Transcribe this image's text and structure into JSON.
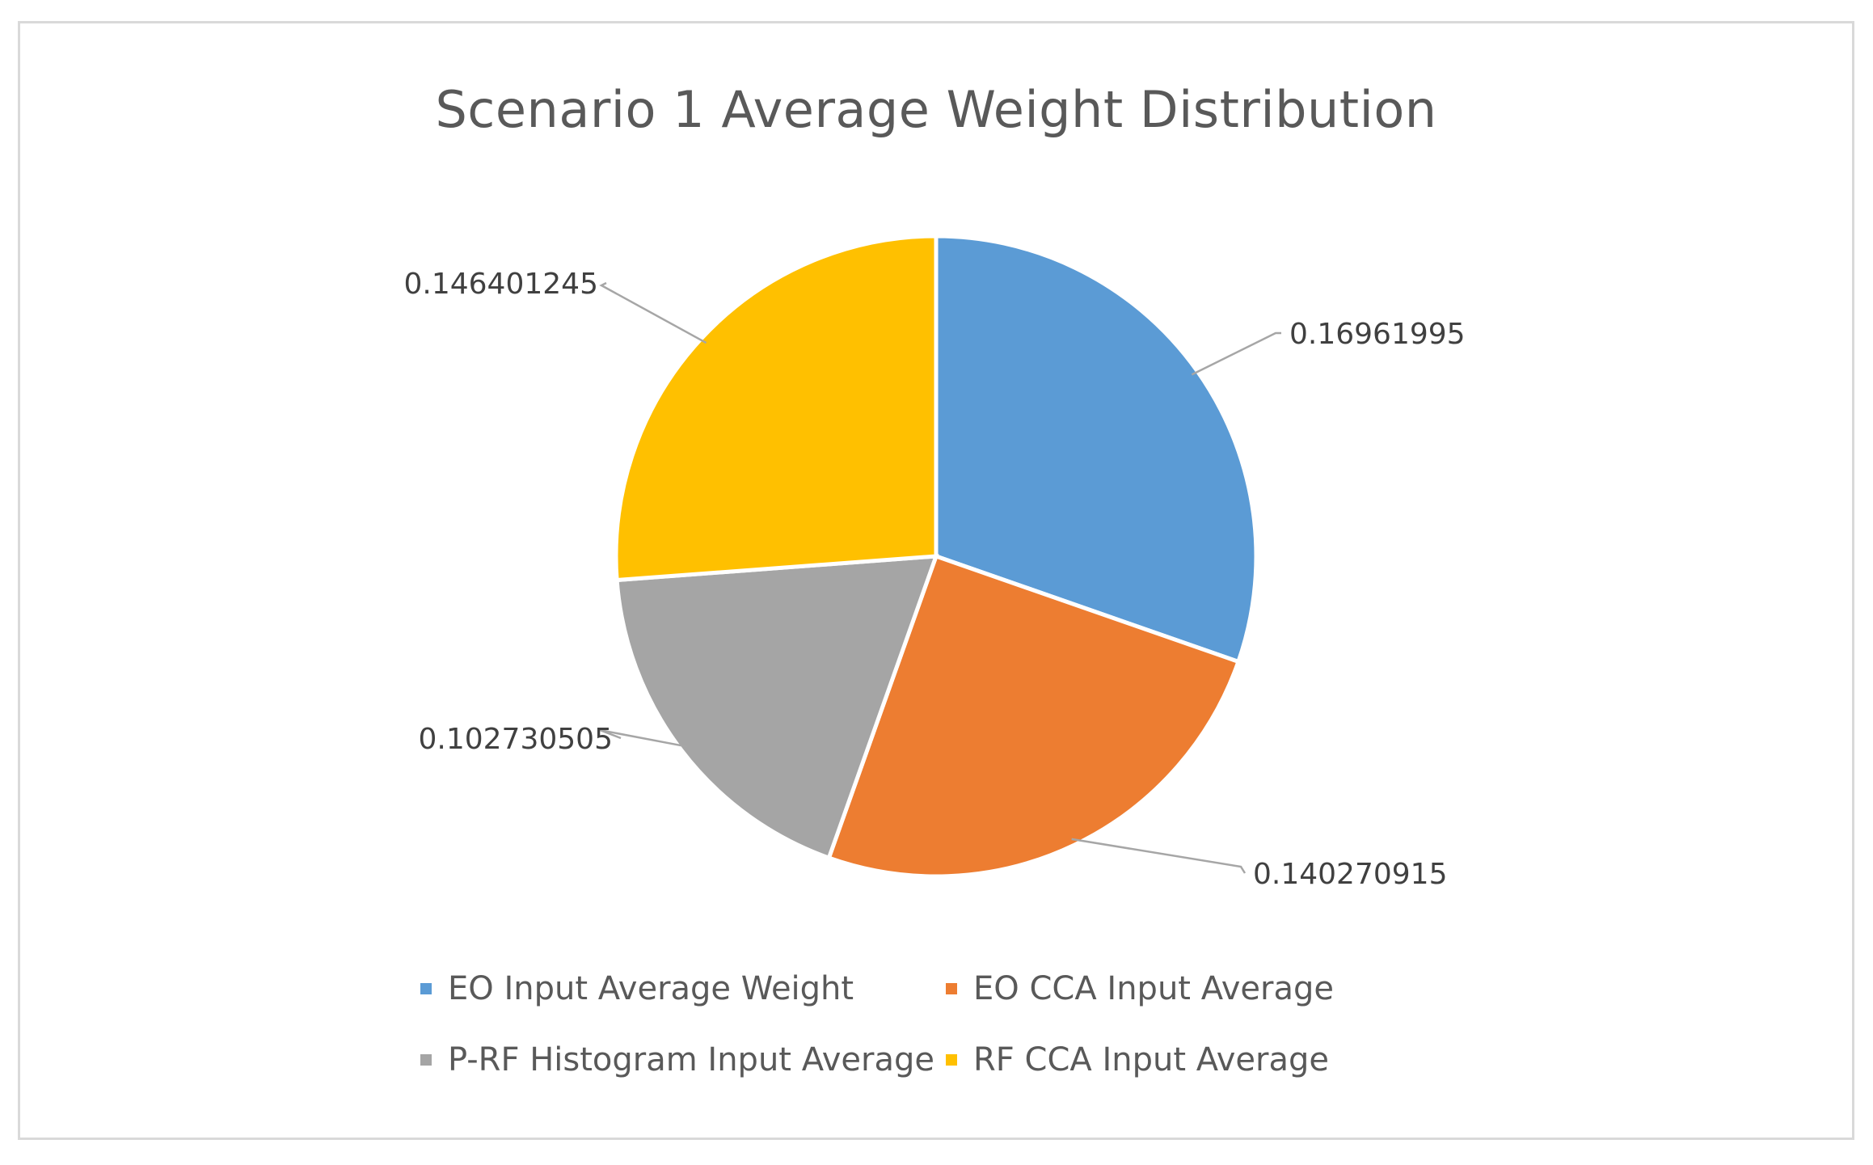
{
  "chart_data": {
    "type": "pie",
    "title": "Scenario 1 Average Weight Distribution",
    "categories": [
      "EO Input Average Weight",
      "EO CCA Input Average",
      "P-RF Histogram Input Average",
      "RF CCA Input Average"
    ],
    "values": [
      0.16961995,
      0.140270915,
      0.102730505,
      0.146401245
    ],
    "data_labels": [
      "0.16961995",
      "0.140270915",
      "0.102730505",
      "0.146401245"
    ],
    "colors": [
      "#5b9bd5",
      "#ed7d31",
      "#a5a5a5",
      "#ffc000"
    ],
    "start_angle": "12 o'clock",
    "direction": "clockwise",
    "legend_position": "bottom"
  }
}
